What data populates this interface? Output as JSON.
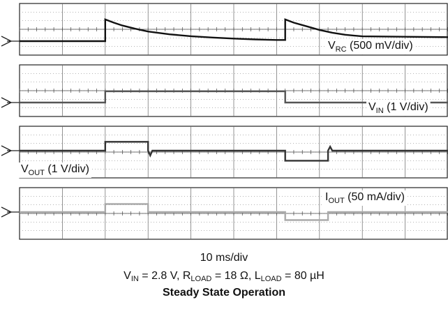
{
  "chart_data": {
    "type": "line",
    "x_unit": "ms",
    "x_range": [
      0,
      100
    ],
    "channels": [
      {
        "name": "VRC",
        "label_main": "V",
        "label_sub": "RC",
        "label_rest": " (500 mV/div)",
        "scale": "500 mV/div",
        "color": "#111111",
        "x": [
          0,
          20,
          20,
          22,
          24,
          27,
          30,
          35,
          40,
          45,
          50,
          55,
          60,
          62,
          62,
          64,
          67,
          70,
          73,
          76,
          80,
          90,
          100
        ],
        "y_div": [
          0,
          0,
          2.7,
          2.3,
          1.95,
          1.55,
          1.2,
          0.85,
          0.62,
          0.45,
          0.32,
          0.22,
          0.15,
          0.15,
          2.7,
          2.3,
          1.85,
          1.4,
          1.05,
          0.8,
          0.6,
          0.55,
          0.5
        ]
      },
      {
        "name": "VIN",
        "label_main": "V",
        "label_sub": "IN",
        "label_rest": " (1 V/div)",
        "scale": "1 V/div",
        "color": "#555555",
        "x": [
          0,
          20,
          20,
          62,
          62,
          100
        ],
        "y_div": [
          0,
          0,
          1.4,
          1.4,
          0,
          0
        ]
      },
      {
        "name": "VOUT",
        "label_main": "V",
        "label_sub": "OUT",
        "label_rest": " (1 V/div)",
        "scale": "1 V/div",
        "color": "#333333",
        "x": [
          0,
          20,
          20,
          30,
          30,
          30.5,
          31,
          62,
          62,
          72,
          72,
          72.5,
          73,
          100
        ],
        "y_div": [
          0,
          0,
          1.1,
          1.1,
          0,
          -0.6,
          0,
          0,
          -1.25,
          -1.25,
          0,
          0.5,
          0,
          0
        ]
      },
      {
        "name": "IOUT",
        "label_main": "I",
        "label_sub": "OUT",
        "label_rest": " (50 mA/div)",
        "scale": "50 mA/div",
        "color": "#aaaaaa",
        "x": [
          0,
          20,
          20,
          30,
          30,
          62,
          62,
          72,
          72,
          100
        ],
        "y_div": [
          0,
          0,
          1.0,
          1.0,
          0,
          0,
          -1.0,
          -1.0,
          0,
          0
        ]
      }
    ],
    "xlabel": "10 ms/div",
    "conditions": {
      "vin_main": "V",
      "vin_sub": "IN",
      "vin_val": " = 2.8 V, ",
      "r_main": "R",
      "r_sub": "LOAD",
      "r_val": " = 18 Ω, ",
      "l_main": "L",
      "l_sub": "LOAD",
      "l_val": " = 80 µH"
    },
    "title": "Steady State Operation"
  }
}
